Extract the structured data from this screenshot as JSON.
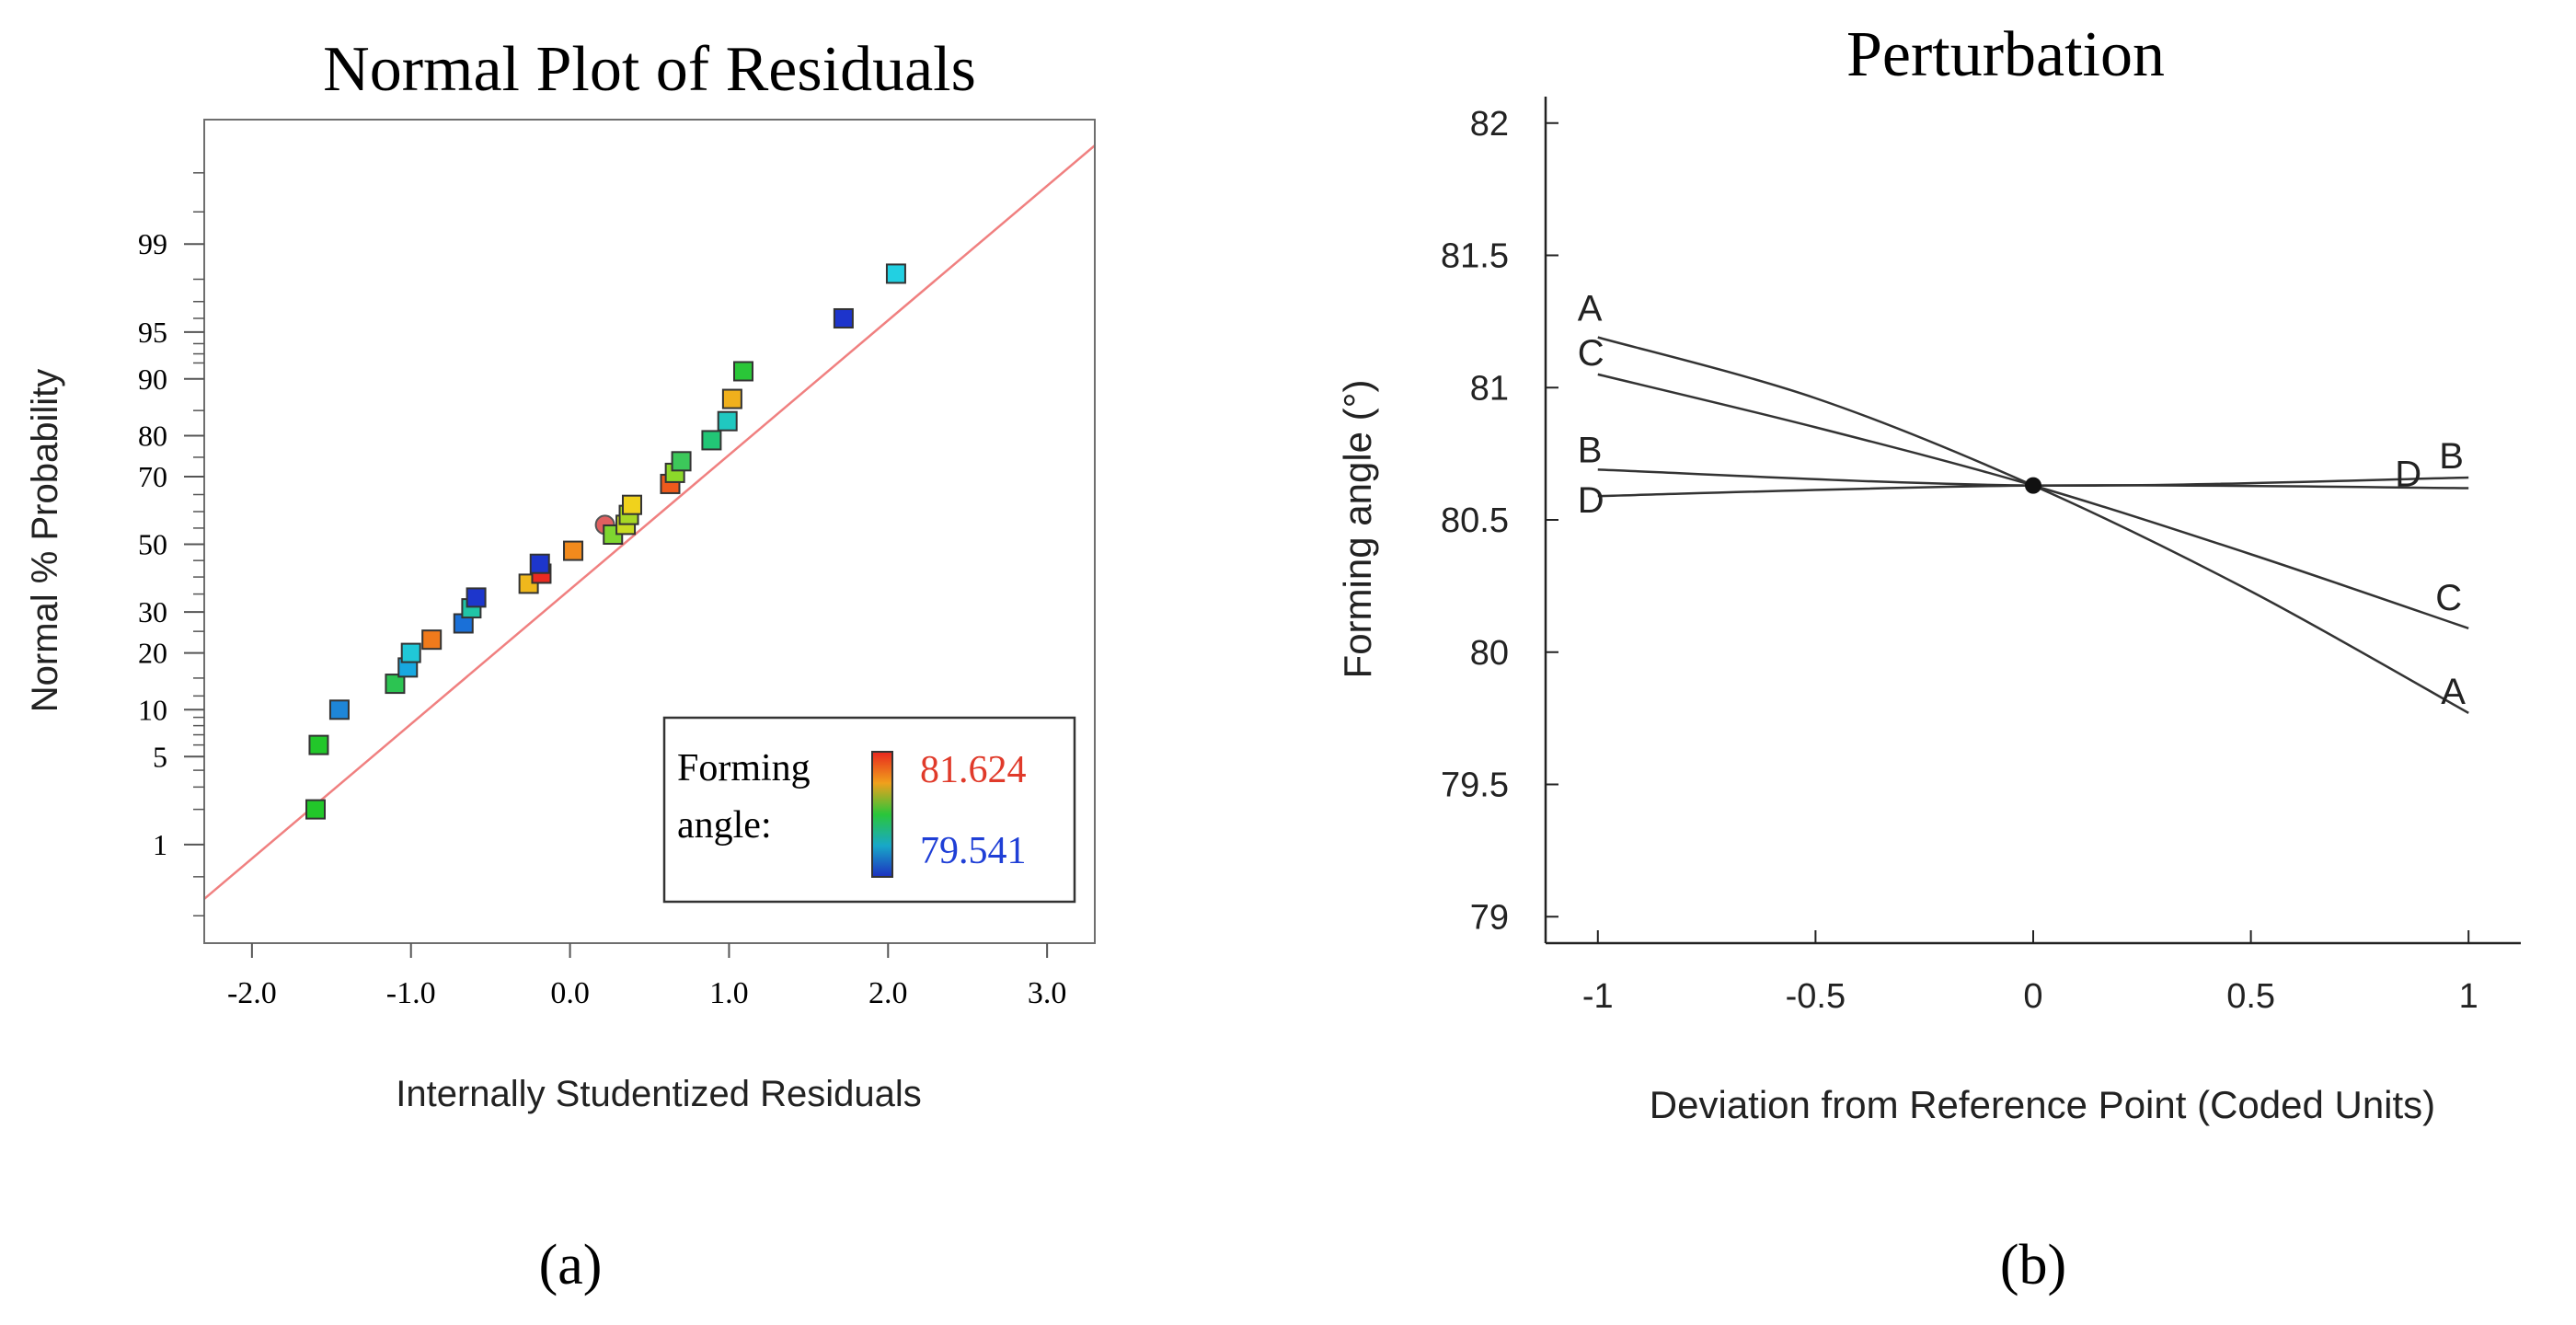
{
  "figure": {
    "caption_a": "(a)",
    "caption_b": "(b)"
  },
  "chart_data": [
    {
      "panel": "a",
      "type": "scatter",
      "title": "Normal Plot of Residuals",
      "xlabel": "Internally Studentized Residuals",
      "ylabel": "Normal % Probability",
      "xlim": [
        -2.3,
        3.3
      ],
      "y_scale": "normal-probability",
      "x_ticks": [
        "-2.0",
        "-1.0",
        "0.0",
        "1.0",
        "2.0",
        "3.0"
      ],
      "x_tick_values": [
        -2,
        -1,
        0,
        1,
        2,
        3
      ],
      "y_ticks": [
        "1",
        "5",
        "10",
        "20",
        "30",
        "50",
        "70",
        "80",
        "90",
        "95",
        "99"
      ],
      "y_tick_values": [
        1,
        5,
        10,
        20,
        30,
        50,
        70,
        80,
        90,
        95,
        99
      ],
      "grid": false,
      "reference_line": {
        "color": "#f08080",
        "from": [
          -2.3,
          0.3
        ],
        "to": [
          3.3,
          99.9
        ]
      },
      "legend": {
        "placement": "bottom-right",
        "label_line1": "Forming",
        "label_line2": "angle:",
        "high": "81.624",
        "low": "79.541",
        "high_color": "#e03a2a",
        "low_color": "#1f3fd6"
      },
      "points": [
        {
          "x": -1.6,
          "y": 2,
          "color": "#22c72a",
          "shape": "square"
        },
        {
          "x": -1.58,
          "y": 6,
          "color": "#22c72a",
          "shape": "square"
        },
        {
          "x": -1.45,
          "y": 10,
          "color": "#1e86d8",
          "shape": "square"
        },
        {
          "x": -1.1,
          "y": 14,
          "color": "#2cc452",
          "shape": "square"
        },
        {
          "x": -1.02,
          "y": 17,
          "color": "#18a8e0",
          "shape": "square"
        },
        {
          "x": -1.0,
          "y": 20,
          "color": "#20c8d8",
          "shape": "square"
        },
        {
          "x": -0.87,
          "y": 23,
          "color": "#f07a1c",
          "shape": "square"
        },
        {
          "x": -0.67,
          "y": 27,
          "color": "#1a70d8",
          "shape": "square"
        },
        {
          "x": -0.62,
          "y": 31,
          "color": "#20c4a6",
          "shape": "square"
        },
        {
          "x": -0.59,
          "y": 34,
          "color": "#1d36cc",
          "shape": "square"
        },
        {
          "x": -0.26,
          "y": 38,
          "color": "#f0b81c",
          "shape": "square"
        },
        {
          "x": -0.18,
          "y": 41,
          "color": "#ea2a22",
          "shape": "square"
        },
        {
          "x": -0.19,
          "y": 44,
          "color": "#1d36cc",
          "shape": "square"
        },
        {
          "x": 0.02,
          "y": 48,
          "color": "#f28a1c",
          "shape": "square"
        },
        {
          "x": 0.22,
          "y": 56,
          "color": "#e06060",
          "shape": "circle"
        },
        {
          "x": 0.27,
          "y": 53,
          "color": "#7ed630",
          "shape": "square"
        },
        {
          "x": 0.35,
          "y": 56,
          "color": "#c8dc22",
          "shape": "square"
        },
        {
          "x": 0.37,
          "y": 59,
          "color": "#a6d826",
          "shape": "square"
        },
        {
          "x": 0.39,
          "y": 62,
          "color": "#f0d21c",
          "shape": "square"
        },
        {
          "x": 0.63,
          "y": 68,
          "color": "#ee5a1c",
          "shape": "square"
        },
        {
          "x": 0.66,
          "y": 71,
          "color": "#8cd82a",
          "shape": "square"
        },
        {
          "x": 0.7,
          "y": 74,
          "color": "#3cc85a",
          "shape": "square"
        },
        {
          "x": 0.89,
          "y": 79,
          "color": "#22c676",
          "shape": "square"
        },
        {
          "x": 0.99,
          "y": 83,
          "color": "#20c8c0",
          "shape": "square"
        },
        {
          "x": 1.02,
          "y": 87,
          "color": "#f0b01c",
          "shape": "square"
        },
        {
          "x": 1.09,
          "y": 91,
          "color": "#2ac638",
          "shape": "square"
        },
        {
          "x": 1.72,
          "y": 96,
          "color": "#1d34cc",
          "shape": "square"
        },
        {
          "x": 2.05,
          "y": 98.2,
          "color": "#22d0e2",
          "shape": "square"
        }
      ]
    },
    {
      "panel": "b",
      "type": "line",
      "title": "Perturbation",
      "xlabel": "Deviation from Reference Point (Coded Units)",
      "ylabel": "Forming angle (°)",
      "xlim": [
        -1.12,
        1.12
      ],
      "ylim": [
        78.9,
        82.1
      ],
      "x_ticks": [
        "-1",
        "-0.5",
        "0",
        "0.5",
        "1"
      ],
      "x_tick_values": [
        -1,
        -0.5,
        0,
        0.5,
        1
      ],
      "y_ticks": [
        "79",
        "79.5",
        "80",
        "80.5",
        "81",
        "81.5",
        "82"
      ],
      "y_tick_values": [
        79,
        79.5,
        80,
        80.5,
        81,
        81.5,
        82
      ],
      "grid": false,
      "reference_point": {
        "x": 0,
        "y": 80.63
      },
      "series": [
        {
          "name": "A",
          "x": [
            -1,
            -0.5,
            0,
            0.5,
            1
          ],
          "values": [
            81.19,
            80.96,
            80.63,
            80.23,
            79.77
          ]
        },
        {
          "name": "B",
          "x": [
            -1,
            0,
            1
          ],
          "values": [
            80.69,
            80.63,
            80.66
          ]
        },
        {
          "name": "C",
          "x": [
            -1,
            -0.5,
            0,
            0.5,
            1
          ],
          "values": [
            81.05,
            80.85,
            80.63,
            80.37,
            80.09
          ]
        },
        {
          "name": "D",
          "x": [
            -1,
            0,
            1
          ],
          "values": [
            80.59,
            80.63,
            80.62
          ]
        }
      ]
    }
  ]
}
